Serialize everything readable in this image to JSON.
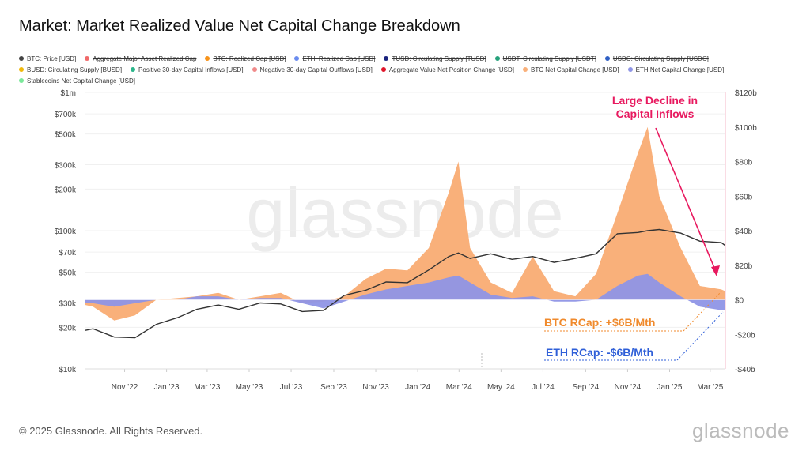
{
  "title": "Market: Market Realized Value Net Capital Change Breakdown",
  "legend": [
    {
      "label": "BTC: Price [USD]",
      "color": "#444444",
      "active": true
    },
    {
      "label": "Aggregate Major Asset Realized Cap",
      "color": "#f06a6a",
      "active": false
    },
    {
      "label": "BTC: Realized Cap [USD]",
      "color": "#f7931a",
      "active": false
    },
    {
      "label": "ETH: Realized Cap [USD]",
      "color": "#6b8cef",
      "active": false
    },
    {
      "label": "TUSD: Circulating Supply [TUSD]",
      "color": "#1a237e",
      "active": false
    },
    {
      "label": "USDT: Circulating Supply [USDT]",
      "color": "#26a17b",
      "active": false
    },
    {
      "label": "USDC: Circulating Supply [USDC]",
      "color": "#2f5fc4",
      "active": false
    },
    {
      "label": "BUSD: Circulating Supply [BUSD]",
      "color": "#f0b90b",
      "active": false
    },
    {
      "label": "Positive 30-day Capital Inflows [USD]",
      "color": "#2bb58a",
      "active": false
    },
    {
      "label": "Negative 30-day Capital Outflows [USD]",
      "color": "#f08a8a",
      "active": false
    },
    {
      "label": "Aggregate Value Net Position Change [USD]",
      "color": "#e0162b",
      "active": false
    },
    {
      "label": "BTC Net Capital Change [USD]",
      "color": "#f9b07a",
      "active": true
    },
    {
      "label": "ETH Net Capital Change [USD]",
      "color": "#8f95e6",
      "active": true
    },
    {
      "label": "Stablecoins Net Capital Change [USD]",
      "color": "#7be89a",
      "active": false
    }
  ],
  "watermark": "glassnode",
  "footer": "© 2025 Glassnode. All Rights Reserved.",
  "logo": "glassnode",
  "chart_data": {
    "type": "area",
    "x_tick_labels": [
      "Nov '22",
      "Jan '23",
      "Mar '23",
      "May '23",
      "Jul '23",
      "Sep '23",
      "Nov '23",
      "Jan '24",
      "Mar '24",
      "May '24",
      "Jul '24",
      "Sep '24",
      "Nov '24",
      "Jan '25",
      "Mar '25"
    ],
    "x_ticks": [
      "2022-11",
      "2023-01",
      "2023-03",
      "2023-05",
      "2023-07",
      "2023-09",
      "2023-11",
      "2024-01",
      "2024-03",
      "2024-05",
      "2024-07",
      "2024-09",
      "2024-11",
      "2025-01",
      "2025-03"
    ],
    "x_range": [
      "2022-09-20",
      "2025-04-07"
    ],
    "left_axis": {
      "scale": "log",
      "range": [
        10000,
        1000000
      ],
      "tick_values": [
        10000,
        20000,
        30000,
        50000,
        70000,
        100000,
        200000,
        300000,
        500000,
        700000,
        1000000
      ],
      "tick_labels": [
        "$10k",
        "$20k",
        "$30k",
        "$50k",
        "$70k",
        "$100k",
        "$200k",
        "$300k",
        "$500k",
        "$700k",
        "$1m"
      ]
    },
    "right_axis": {
      "scale": "linear",
      "range": [
        -40,
        120
      ],
      "unit": "billion USD",
      "tick_values": [
        -40,
        -20,
        0,
        20,
        40,
        60,
        80,
        100,
        120
      ],
      "tick_labels": [
        "-$40b",
        "-$20b",
        "$0",
        "$20b",
        "$40b",
        "$60b",
        "$80b",
        "$100b",
        "$120b"
      ]
    },
    "grid": true,
    "x": [
      "2022-09-20",
      "2022-10",
      "2022-11",
      "2022-12",
      "2023-01",
      "2023-02",
      "2023-03",
      "2023-04",
      "2023-05",
      "2023-06",
      "2023-07",
      "2023-08",
      "2023-09",
      "2023-10",
      "2023-11",
      "2023-12",
      "2024-01",
      "2024-02",
      "2024-03",
      "2024-03-15",
      "2024-04",
      "2024-05",
      "2024-06",
      "2024-07",
      "2024-08",
      "2024-09",
      "2024-10",
      "2024-11",
      "2024-12",
      "2024-12-15",
      "2025-01",
      "2025-02",
      "2025-03",
      "2025-04",
      "2025-04-07"
    ],
    "series": [
      {
        "name": "BTC: Price [USD]",
        "axis": "left",
        "type": "line",
        "color": "#333333",
        "values": [
          19000,
          19500,
          17000,
          16800,
          21000,
          23500,
          27000,
          29000,
          27000,
          30000,
          29500,
          26000,
          26500,
          34000,
          37000,
          42500,
          42000,
          52000,
          65000,
          69000,
          63000,
          68000,
          62000,
          65000,
          59000,
          63000,
          68000,
          95000,
          97000,
          100000,
          102000,
          96000,
          84000,
          82000,
          78000
        ]
      },
      {
        "name": "BTC Net Capital Change [USD]",
        "axis": "right",
        "type": "area",
        "color": "#f9b07a",
        "values": [
          -3,
          -4,
          -12,
          -9,
          0,
          1,
          2,
          4,
          0,
          2,
          4,
          -2,
          -1,
          2,
          12,
          18,
          17,
          30,
          62,
          80,
          30,
          10,
          4,
          25,
          5,
          2,
          15,
          50,
          85,
          100,
          60,
          30,
          8,
          6,
          5
        ]
      },
      {
        "name": "ETH Net Capital Change [USD]",
        "axis": "right",
        "type": "area",
        "color": "#8f95e6",
        "values": [
          -2,
          -2,
          -4,
          -2,
          0,
          0,
          2,
          2,
          0,
          1,
          1,
          -2,
          -5,
          -1,
          3,
          6,
          8,
          10,
          13,
          14,
          10,
          3,
          1,
          2,
          -1,
          -1,
          0,
          8,
          14,
          15,
          10,
          2,
          -4,
          -6,
          -6
        ]
      }
    ],
    "annotations": [
      {
        "text": "Large Decline in",
        "color": "#e8195f"
      },
      {
        "text": "Capital Inflows",
        "color": "#e8195f"
      },
      {
        "text": "BTC RCap: +$6B/Mth",
        "color": "#f08a2c"
      },
      {
        "text": "ETH RCap: -$6B/Mth",
        "color": "#2f5fd8"
      }
    ]
  }
}
